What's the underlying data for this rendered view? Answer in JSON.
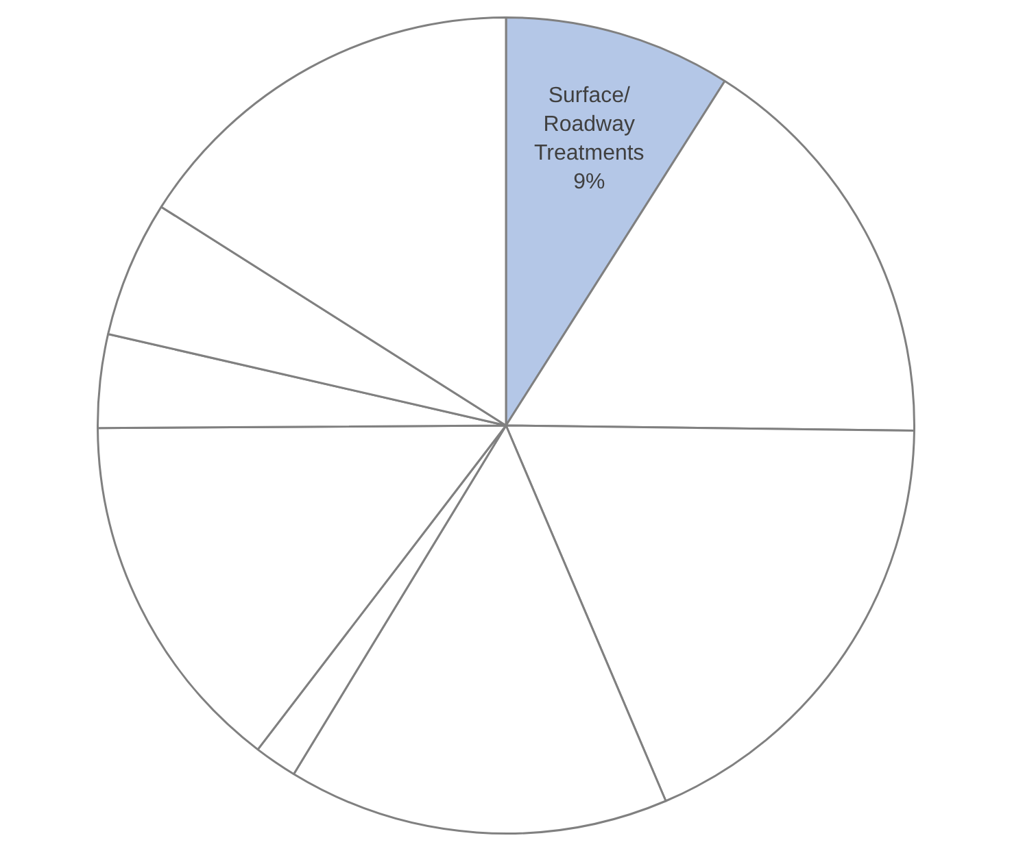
{
  "chart_data": {
    "type": "pie",
    "categories": [
      "Surface/ Roadway Treatments",
      null,
      null,
      null,
      null,
      null,
      null,
      null,
      null
    ],
    "values": [
      9,
      16.2,
      18.4,
      15.1,
      1.7,
      14.5,
      3.7,
      5.4,
      16.0
    ],
    "value_labels": [
      "9%",
      null,
      null,
      null,
      null,
      null,
      null,
      null,
      null
    ],
    "colors": [
      "#b4c7e7",
      "#ffffff",
      "#ffffff",
      "#ffffff",
      "#ffffff",
      "#ffffff",
      "#ffffff",
      "#ffffff",
      "#ffffff"
    ],
    "legend": false
  }
}
